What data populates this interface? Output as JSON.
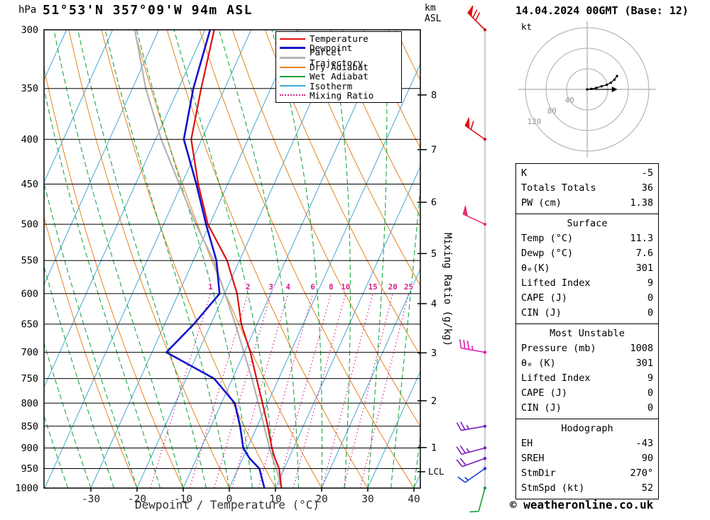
{
  "header": {
    "pressure_unit": "hPa",
    "station_title": "51°53'N 357°09'W 94m ASL",
    "altitude_unit_line1": "km",
    "altitude_unit_line2": "ASL",
    "datetime_title": "14.04.2024 00GMT (Base: 12)"
  },
  "colors": {
    "isotherm": "#46a6d2",
    "dry_adiabat": "#e8821e",
    "wet_adiabat": "#0aa132",
    "mixing": "#d6218e",
    "temperature": "#e01010",
    "dewpoint": "#1414cd",
    "parcel": "#b4b4b4"
  },
  "legend": [
    {
      "key": "temperature",
      "label": "Temperature",
      "color": "#e01010",
      "style": "solid",
      "width": 2
    },
    {
      "key": "dewpoint",
      "label": "Dewpoint",
      "color": "#1414cd",
      "style": "solid",
      "width": 3
    },
    {
      "key": "parcel-trajectory",
      "label": "Parcel Trajectory",
      "color": "#b4b4b4",
      "style": "solid",
      "width": 3
    },
    {
      "key": "dry-adiabat",
      "label": "Dry Adiabat",
      "color": "#e8821e",
      "style": "solid",
      "width": 2
    },
    {
      "key": "wet-adiabat",
      "label": "Wet Adiabat",
      "color": "#0aa132",
      "style": "solid",
      "width": 2
    },
    {
      "key": "isotherm",
      "label": "Isotherm",
      "color": "#46a6d2",
      "style": "solid",
      "width": 2
    },
    {
      "key": "mixing-ratio",
      "label": "Mixing Ratio",
      "color": "#d6218e",
      "style": "dotted",
      "width": 2
    }
  ],
  "axes": {
    "pressure_ticks": [
      300,
      350,
      400,
      450,
      500,
      550,
      600,
      650,
      700,
      750,
      800,
      850,
      900,
      950,
      1000
    ],
    "temp_ticks": [
      -30,
      -20,
      -10,
      0,
      10,
      20,
      30,
      40
    ],
    "xlabel": "Dewpoint / Temperature (°C)",
    "mixing_label": "Mixing Ratio (g/kg)",
    "mixing_values": [
      1,
      2,
      3,
      4,
      6,
      8,
      10,
      15,
      20,
      25
    ],
    "km_ticks": [
      {
        "label": "8",
        "p": 356
      },
      {
        "label": "7",
        "p": 411
      },
      {
        "label": "6",
        "p": 472
      },
      {
        "label": "5",
        "p": 540
      },
      {
        "label": "4",
        "p": 616
      },
      {
        "label": "3",
        "p": 701
      },
      {
        "label": "2",
        "p": 795
      },
      {
        "label": "1",
        "p": 899
      }
    ],
    "lcl": {
      "label": "LCL",
      "p": 958
    }
  },
  "chart_data": {
    "type": "line",
    "title": "Skew-T log-P sounding for 51°53'N 357°09'W 94m ASL, 14.04.2024 00GMT",
    "x_axis": {
      "label": "Dewpoint / Temperature (°C)",
      "ticks": [
        -30,
        -20,
        -10,
        0,
        10,
        20,
        30,
        40
      ]
    },
    "y_axis": {
      "label": "hPa",
      "scale": "log",
      "min": 300,
      "max": 1000,
      "ticks": [
        300,
        350,
        400,
        450,
        500,
        550,
        600,
        650,
        700,
        750,
        800,
        850,
        900,
        950,
        1000
      ]
    },
    "pressure_hPa": [
      1000,
      950,
      925,
      900,
      850,
      800,
      750,
      700,
      650,
      600,
      550,
      500,
      450,
      400,
      350,
      300
    ],
    "series": [
      {
        "name": "Temperature",
        "color": "#e01010",
        "values_C": [
          11.3,
          8.9,
          7.0,
          5.3,
          2.3,
          -1.1,
          -4.8,
          -8.7,
          -13.4,
          -17.3,
          -22.7,
          -30.4,
          -36.4,
          -42.3,
          -45.1,
          -48.0
        ]
      },
      {
        "name": "Dewpoint",
        "color": "#1414cd",
        "values_C": [
          7.6,
          4.6,
          1.5,
          -0.9,
          -3.7,
          -7.1,
          -14.0,
          -26.9,
          -23.7,
          -21.1,
          -25.0,
          -30.8,
          -36.8,
          -43.9,
          -46.8,
          -48.9
        ]
      },
      {
        "name": "Parcel Trajectory",
        "color": "#b4b4b4",
        "values_C": [
          11.3,
          8.3,
          6.5,
          4.8,
          1.5,
          -2.0,
          -5.8,
          -10.1,
          -14.7,
          -19.9,
          -25.6,
          -33.0,
          -40.5,
          -48.8,
          -57.1,
          -65.2
        ]
      }
    ],
    "wind_barbs": [
      {
        "p": 300,
        "dir_deg": 315,
        "speed_kt": 70,
        "color": "#e01010"
      },
      {
        "p": 400,
        "dir_deg": 305,
        "speed_kt": 60,
        "color": "#e01010"
      },
      {
        "p": 500,
        "dir_deg": 295,
        "speed_kt": 50,
        "color": "#e8336d"
      },
      {
        "p": 700,
        "dir_deg": 280,
        "speed_kt": 35,
        "color": "#e020b0"
      },
      {
        "p": 850,
        "dir_deg": 260,
        "speed_kt": 25,
        "color": "#7a1fbf"
      },
      {
        "p": 900,
        "dir_deg": 255,
        "speed_kt": 25,
        "color": "#7a1fbf"
      },
      {
        "p": 925,
        "dir_deg": 250,
        "speed_kt": 20,
        "color": "#7a1fbf"
      },
      {
        "p": 950,
        "dir_deg": 235,
        "speed_kt": 15,
        "color": "#2038d0"
      },
      {
        "p": 1000,
        "dir_deg": 195,
        "speed_kt": 10,
        "color": "#18a038"
      }
    ],
    "hodograph": {
      "unit_label": "kt",
      "rings_kt": [
        40,
        80,
        120
      ],
      "trace_uv_kt": [
        [
          0,
          0
        ],
        [
          8,
          1
        ],
        [
          18,
          3
        ],
        [
          28,
          6
        ],
        [
          38,
          9
        ],
        [
          46,
          13
        ],
        [
          53,
          19
        ],
        [
          58,
          26
        ]
      ],
      "storm_dir_deg": 270,
      "storm_speed_kt": 52
    }
  },
  "tables": {
    "sections": [
      {
        "key": "indices",
        "rows": [
          [
            "K",
            "-5"
          ],
          [
            "Totals Totals",
            "36"
          ],
          [
            "PW (cm)",
            "1.38"
          ]
        ]
      },
      {
        "key": "surface",
        "header": "Surface",
        "rows": [
          [
            "Temp (°C)",
            "11.3"
          ],
          [
            "Dewp (°C)",
            "7.6"
          ],
          [
            "θₑ(K)",
            "301"
          ],
          [
            "Lifted Index",
            "9"
          ],
          [
            "CAPE (J)",
            "0"
          ],
          [
            "CIN (J)",
            "0"
          ]
        ]
      },
      {
        "key": "most-unstable",
        "header": "Most Unstable",
        "rows": [
          [
            "Pressure (mb)",
            "1008"
          ],
          [
            "θₑ (K)",
            "301"
          ],
          [
            "Lifted Index",
            "9"
          ],
          [
            "CAPE (J)",
            "0"
          ],
          [
            "CIN (J)",
            "0"
          ]
        ]
      },
      {
        "key": "hodograph",
        "header": "Hodograph",
        "rows": [
          [
            "EH",
            "-43"
          ],
          [
            "SREH",
            "90"
          ],
          [
            "StmDir",
            "270°"
          ],
          [
            "StmSpd (kt)",
            "52"
          ]
        ]
      }
    ]
  },
  "footer": {
    "copyright": "© weatheronline.co.uk"
  }
}
